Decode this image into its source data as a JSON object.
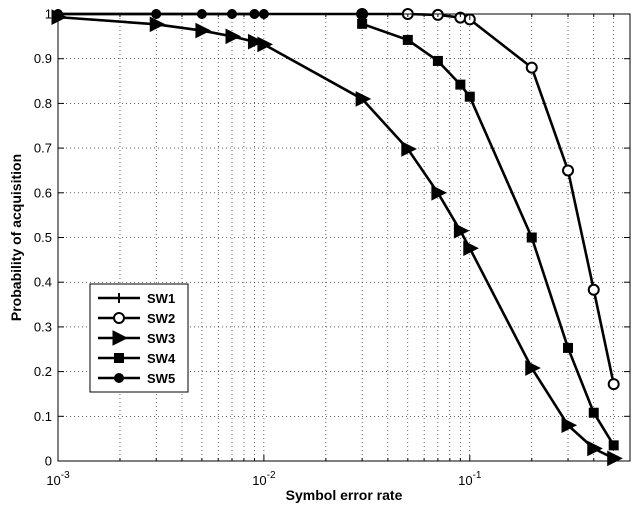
{
  "chart_data": {
    "type": "line",
    "xscale": "log",
    "xlabel": "Symbol error rate",
    "ylabel": "Probability of acquisition",
    "xlim": [
      0.001,
      0.6
    ],
    "ylim": [
      0,
      1
    ],
    "grid": true,
    "legend_position": "bottom-left",
    "x_major_ticks": [
      {
        "value": 0.001,
        "base": "10",
        "exp": "-3"
      },
      {
        "value": 0.01,
        "base": "10",
        "exp": "-2"
      },
      {
        "value": 0.1,
        "base": "10",
        "exp": "-1"
      }
    ],
    "y_ticks": [
      {
        "value": 0,
        "label": "0"
      },
      {
        "value": 0.1,
        "label": "0.1"
      },
      {
        "value": 0.2,
        "label": "0.2"
      },
      {
        "value": 0.3,
        "label": "0.3"
      },
      {
        "value": 0.4,
        "label": "0.4"
      },
      {
        "value": 0.5,
        "label": "0.5"
      },
      {
        "value": 0.6,
        "label": "0.6"
      },
      {
        "value": 0.7,
        "label": "0.7"
      },
      {
        "value": 0.8,
        "label": "0.8"
      },
      {
        "value": 0.9,
        "label": "0.9"
      },
      {
        "value": 1,
        "label": "1"
      }
    ],
    "series": [
      {
        "name": "SW1",
        "marker": "plus",
        "x": [
          0.001,
          0.003,
          0.005,
          0.007,
          0.009,
          0.01
        ],
        "y": [
          1,
          1,
          1,
          1,
          1,
          1
        ]
      },
      {
        "name": "SW2",
        "marker": "circle",
        "x": [
          0.03,
          0.05,
          0.07,
          0.09,
          0.1,
          0.2,
          0.3,
          0.4,
          0.5
        ],
        "y": [
          1,
          1,
          0.998,
          0.992,
          0.988,
          0.88,
          0.65,
          0.383,
          0.172
        ]
      },
      {
        "name": "SW3",
        "marker": "triangle-right",
        "x": [
          0.001,
          0.003,
          0.005,
          0.007,
          0.009,
          0.01,
          0.03,
          0.05,
          0.07,
          0.09,
          0.1,
          0.2,
          0.3,
          0.4,
          0.5
        ],
        "y": [
          0.993,
          0.977,
          0.963,
          0.95,
          0.938,
          0.932,
          0.81,
          0.698,
          0.6,
          0.515,
          0.476,
          0.208,
          0.08,
          0.028,
          0.006
        ]
      },
      {
        "name": "SW4",
        "marker": "square",
        "x": [
          0.03,
          0.05,
          0.07,
          0.09,
          0.1,
          0.2,
          0.3,
          0.4,
          0.5
        ],
        "y": [
          0.978,
          0.942,
          0.895,
          0.842,
          0.815,
          0.5,
          0.253,
          0.108,
          0.035
        ]
      },
      {
        "name": "SW5",
        "marker": "dot",
        "x": [
          0.001,
          0.003,
          0.005,
          0.007,
          0.009,
          0.01,
          0.03
        ],
        "y": [
          1,
          1,
          1,
          1,
          1,
          1,
          1
        ]
      }
    ]
  }
}
